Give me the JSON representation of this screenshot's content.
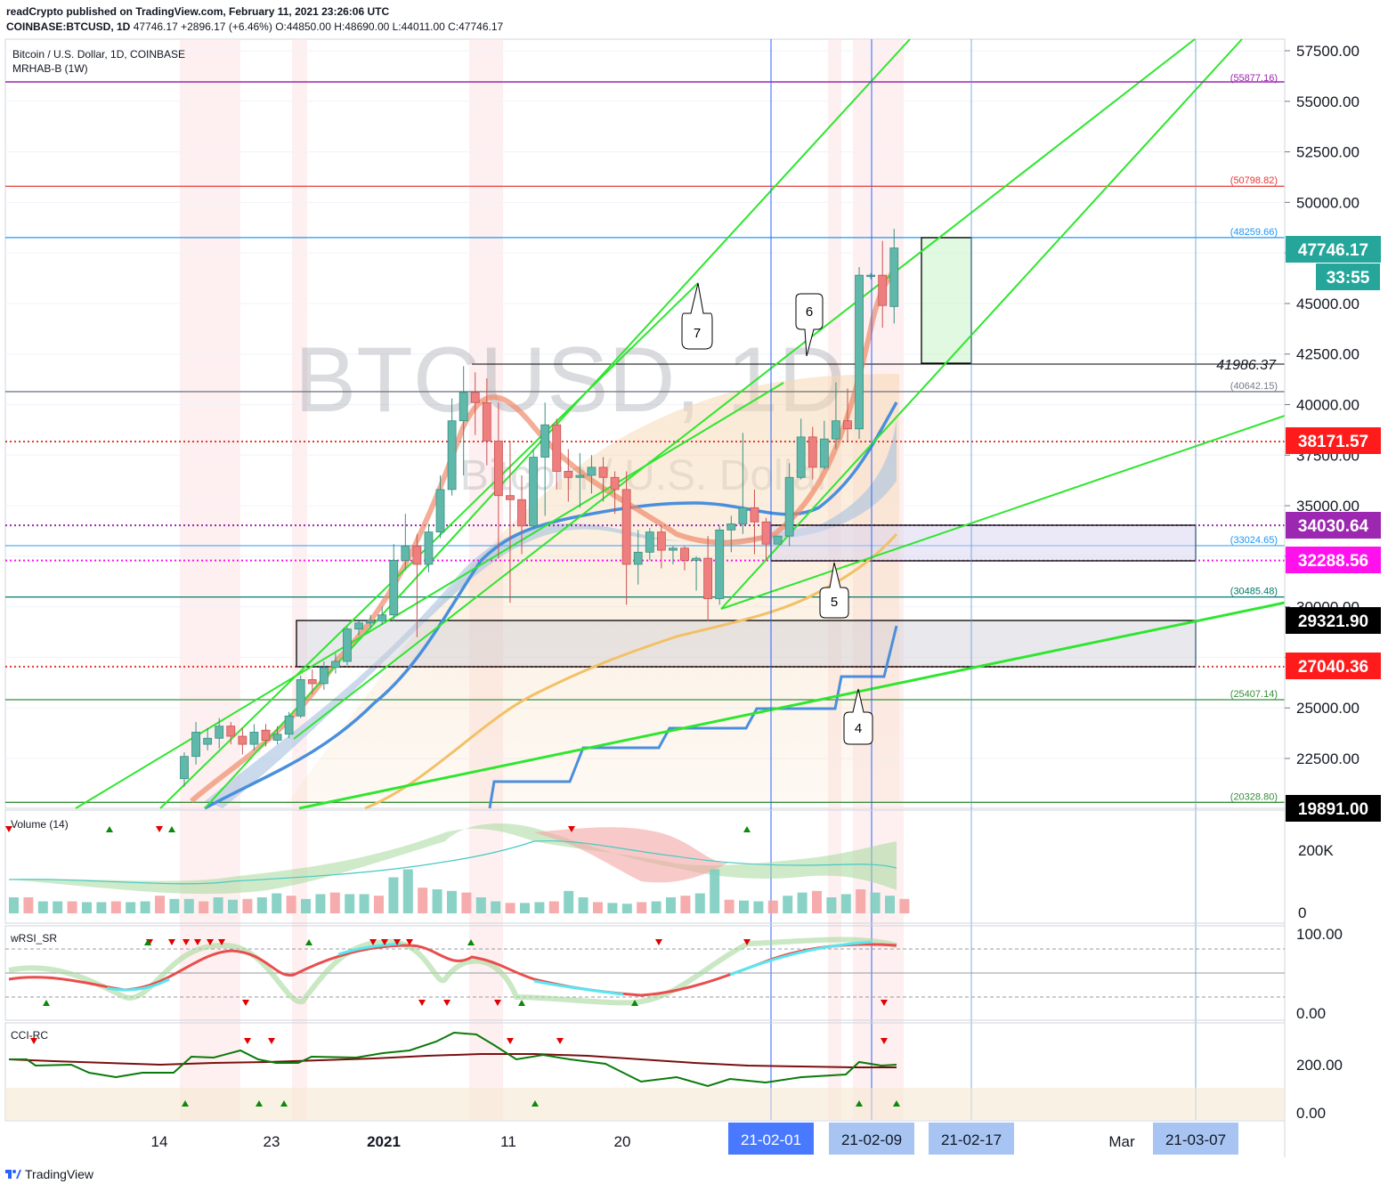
{
  "header": {
    "line1": "readCrypto published on TradingView.com, February 11, 2021 23:26:06 UTC",
    "symbol": "COINBASE:BTCUSD, 1D",
    "last": "47746.17",
    "change": "+2896.17 (+6.46%)",
    "ohlc": "O:44850.00 H:48690.00 L:44011.00 C:47746.17"
  },
  "legend": {
    "title": "Bitcoin / U.S. Dollar, 1D, COINBASE",
    "indicator": "MRHAB-B (1W)"
  },
  "watermark": {
    "main": "BTCUSD, 1D",
    "sub": "Bitcoin / U.S. Dollar"
  },
  "panes": {
    "volume": "Volume (14)",
    "wrsi": "wRSI_SR",
    "cci": "CCI-RC"
  },
  "footer": {
    "brand": "TradingView"
  },
  "colors": {
    "up": "#5fb8a9",
    "down": "#ef7f7f",
    "trend": "#33dd33",
    "blue": "#4a8fdc",
    "orange": "#f2c166",
    "purple": "#9c27b0",
    "red": "#e53935",
    "darkgreen": "#388e3c"
  },
  "chart_data": {
    "type": "candlestick",
    "yaxis_ticks": [
      "57500.00",
      "55000.00",
      "52500.00",
      "50000.00",
      "47500.00",
      "45000.00",
      "42500.00",
      "40000.00",
      "37500.00",
      "35000.00",
      "32500.00",
      "30000.00",
      "27500.00",
      "25000.00",
      "22500.00"
    ],
    "ylim": [
      19900,
      58500
    ],
    "xaxis_ticks": [
      "14",
      "23",
      "2021",
      "11",
      "20",
      "Mar"
    ],
    "xaxis_badges": [
      "21-02-01",
      "21-02-09",
      "21-02-17",
      "21-03-07"
    ],
    "price_badges": [
      {
        "text": "47746.17",
        "color": "#26a69a"
      },
      {
        "text": "33:55",
        "color": "#26a69a"
      },
      {
        "text": "38171.57",
        "color": "#ff1b1b"
      },
      {
        "text": "34030.64",
        "color": "#9c27b0"
      },
      {
        "text": "32288.56",
        "color": "#ff11ee"
      },
      {
        "text": "29321.90",
        "color": "#000000"
      },
      {
        "text": "27040.36",
        "color": "#ff1b1b"
      },
      {
        "text": "19891.00",
        "color": "#000000"
      }
    ],
    "level_labels": [
      {
        "value": 55877.16,
        "text": "(55877.16)",
        "color": "#9c27b0"
      },
      {
        "value": 50798.82,
        "text": "(50798.82)",
        "color": "#e53935"
      },
      {
        "value": 48259.66,
        "text": "(48259.66)",
        "color": "#2196f3"
      },
      {
        "value": 40642.15,
        "text": "(40642.15)",
        "color": "#787b86"
      },
      {
        "value": 33024.65,
        "text": "(33024.65)",
        "color": "#2196f3"
      },
      {
        "value": 30485.48,
        "text": "(30485.48)",
        "color": "#00796b"
      },
      {
        "value": 25407.14,
        "text": "(25407.14)",
        "color": "#388e3c"
      },
      {
        "value": 20328.8,
        "text": "(20328.80)",
        "color": "#388e3c"
      }
    ],
    "annotation_value": "41986.37",
    "callouts": [
      "7",
      "6",
      "5",
      "4"
    ],
    "candles": [
      [
        21500,
        22600,
        21100,
        22800
      ],
      [
        22600,
        23800,
        22200,
        24300
      ],
      [
        23200,
        23500,
        22900,
        24000
      ],
      [
        23500,
        24100,
        23000,
        24500
      ],
      [
        24100,
        23600,
        23200,
        24300
      ],
      [
        23600,
        23200,
        22700,
        24000
      ],
      [
        23200,
        23800,
        22900,
        24200
      ],
      [
        23900,
        23400,
        23100,
        24200
      ],
      [
        23400,
        23700,
        23200,
        24100
      ],
      [
        23700,
        24600,
        23500,
        24800
      ],
      [
        24600,
        26400,
        24500,
        26600
      ],
      [
        26400,
        26200,
        25700,
        26900
      ],
      [
        26200,
        27000,
        25900,
        27300
      ],
      [
        27000,
        27300,
        26700,
        27700
      ],
      [
        27300,
        28900,
        27100,
        29000
      ],
      [
        28900,
        29200,
        28600,
        29300
      ],
      [
        29200,
        29300,
        28900,
        29600
      ],
      [
        29300,
        29600,
        29100,
        30000
      ],
      [
        29600,
        32300,
        29300,
        33100
      ],
      [
        32300,
        33000,
        31800,
        34600
      ],
      [
        33000,
        32100,
        28500,
        33600
      ],
      [
        32100,
        33700,
        31700,
        34100
      ],
      [
        33700,
        35800,
        33400,
        36500
      ],
      [
        35800,
        39200,
        35500,
        40300
      ],
      [
        39200,
        40600,
        36500,
        41900
      ],
      [
        40600,
        40100,
        38500,
        41600
      ],
      [
        40100,
        38200,
        37000,
        41300
      ],
      [
        38200,
        35500,
        32400,
        40100
      ],
      [
        35500,
        35300,
        30200,
        38200
      ],
      [
        35300,
        34000,
        32600,
        36500
      ],
      [
        34000,
        37400,
        33900,
        37800
      ],
      [
        37400,
        39000,
        34500,
        40100
      ],
      [
        39000,
        36700,
        35800,
        39300
      ],
      [
        36700,
        36400,
        35200,
        37800
      ],
      [
        36400,
        36500,
        34900,
        37600
      ],
      [
        36500,
        36900,
        35600,
        37500
      ],
      [
        36900,
        36400,
        35200,
        37400
      ],
      [
        36400,
        35800,
        34600,
        36700
      ],
      [
        35800,
        32100,
        30100,
        36700
      ],
      [
        32100,
        32700,
        31100,
        33800
      ],
      [
        32700,
        33700,
        32300,
        33900
      ],
      [
        33700,
        32800,
        31900,
        34000
      ],
      [
        32800,
        32900,
        32100,
        33000
      ],
      [
        32900,
        32300,
        31800,
        33000
      ],
      [
        32300,
        32400,
        30800,
        32500
      ],
      [
        32400,
        30400,
        29300,
        33500
      ],
      [
        30400,
        33800,
        30100,
        34000
      ],
      [
        33800,
        34100,
        32700,
        34500
      ],
      [
        34100,
        34900,
        33600,
        38600
      ],
      [
        34900,
        34200,
        32600,
        35800
      ],
      [
        34200,
        33100,
        32300,
        34400
      ],
      [
        33100,
        33500,
        33100,
        33500
      ],
      [
        33500,
        36400,
        33000,
        37100
      ],
      [
        36400,
        38400,
        36300,
        39300
      ],
      [
        38400,
        36900,
        36300,
        38900
      ],
      [
        36900,
        38300,
        36800,
        39200
      ],
      [
        38300,
        39200,
        37800,
        41100
      ],
      [
        39200,
        38800,
        38200,
        40800
      ],
      [
        38800,
        46400,
        38300,
        46800
      ],
      [
        46400,
        46400,
        46200,
        46500
      ],
      [
        46400,
        44900,
        43800,
        48100
      ],
      [
        44850,
        47746,
        44011,
        48690
      ]
    ],
    "volume": [
      20,
      20,
      15,
      15,
      15,
      14,
      14,
      15,
      14,
      15,
      22,
      18,
      18,
      15,
      20,
      17,
      18,
      20,
      25,
      22,
      18,
      24,
      26,
      24,
      24,
      22,
      45,
      55,
      32,
      30,
      28,
      26,
      20,
      15,
      13,
      13,
      14,
      15,
      28,
      20,
      14,
      13,
      12,
      14,
      15,
      20,
      22,
      25,
      55,
      17,
      16,
      15,
      16,
      22,
      26,
      28,
      20,
      24,
      30,
      26,
      22,
      18
    ],
    "wrsi_signals_up": [
      "16",
      "29",
      "47",
      "55",
      "72",
      "74"
    ],
    "cci_series": "green oscillator and dark-red signal line"
  }
}
